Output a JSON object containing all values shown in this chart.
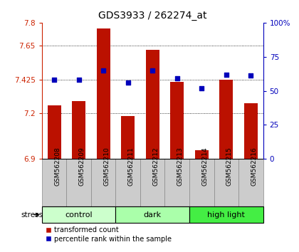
{
  "title": "GDS3933 / 262274_at",
  "samples": [
    "GSM562208",
    "GSM562209",
    "GSM562210",
    "GSM562211",
    "GSM562212",
    "GSM562213",
    "GSM562214",
    "GSM562215",
    "GSM562216"
  ],
  "bar_values": [
    7.255,
    7.28,
    7.76,
    7.185,
    7.62,
    7.41,
    6.955,
    7.425,
    7.27
  ],
  "scatter_values": [
    58,
    58,
    65,
    56,
    65,
    59,
    52,
    62,
    61
  ],
  "ylim_left": [
    6.9,
    7.8
  ],
  "ylim_right": [
    0,
    100
  ],
  "yticks_left": [
    6.9,
    7.2,
    7.425,
    7.65,
    7.8
  ],
  "yticks_right": [
    0,
    25,
    50,
    75,
    100
  ],
  "ytick_labels_left": [
    "6.9",
    "7.2",
    "7.425",
    "7.65",
    "7.8"
  ],
  "ytick_labels_right": [
    "0",
    "25",
    "50",
    "75",
    "100%"
  ],
  "bar_color": "#bb1100",
  "scatter_color": "#0000bb",
  "bar_bottom": 6.9,
  "groups": [
    {
      "label": "control",
      "start": 0,
      "end": 3,
      "color": "#ccffcc"
    },
    {
      "label": "dark",
      "start": 3,
      "end": 6,
      "color": "#aaffaa"
    },
    {
      "label": "high light",
      "start": 6,
      "end": 9,
      "color": "#44ee44"
    }
  ],
  "stress_label": "stress",
  "legend_bar_label": "transformed count",
  "legend_scatter_label": "percentile rank within the sample",
  "bg_color": "#ffffff",
  "plot_bg": "#ffffff",
  "sample_bg": "#cccccc",
  "title_color": "#000000"
}
